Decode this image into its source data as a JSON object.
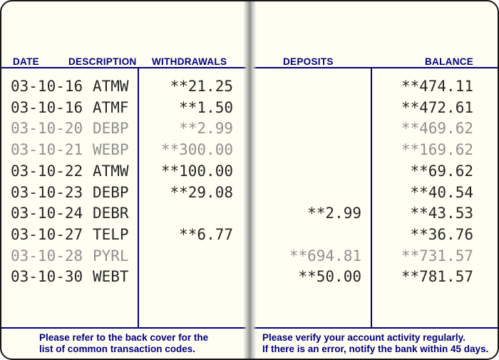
{
  "columns": {
    "date": "DATE",
    "description": "DESCRIPTION",
    "withdrawals": "WITHDRAWALS",
    "deposits": "DEPOSITS",
    "balance": "BALANCE"
  },
  "rows": [
    {
      "date": "03-10-16",
      "code": "ATMW",
      "withdrawal": "**21.25",
      "deposit": "",
      "balance": "**474.11",
      "faded": false
    },
    {
      "date": "03-10-16",
      "code": "ATMF",
      "withdrawal": "**1.50",
      "deposit": "",
      "balance": "**472.61",
      "faded": false
    },
    {
      "date": "03-10-20",
      "code": "DEBP",
      "withdrawal": "**2.99",
      "deposit": "",
      "balance": "**469.62",
      "faded": true
    },
    {
      "date": "03-10-21",
      "code": "WEBP",
      "withdrawal": "**300.00",
      "deposit": "",
      "balance": "**169.62",
      "faded": true
    },
    {
      "date": "03-10-22",
      "code": "ATMW",
      "withdrawal": "**100.00",
      "deposit": "",
      "balance": "**69.62",
      "faded": false
    },
    {
      "date": "03-10-23",
      "code": "DEBP",
      "withdrawal": "**29.08",
      "deposit": "",
      "balance": "**40.54",
      "faded": false
    },
    {
      "date": "03-10-24",
      "code": "DEBR",
      "withdrawal": "",
      "deposit": "**2.99",
      "balance": "**43.53",
      "faded": false
    },
    {
      "date": "03-10-27",
      "code": "TELP",
      "withdrawal": "**6.77",
      "deposit": "",
      "balance": "**36.76",
      "faded": false
    },
    {
      "date": "03-10-28",
      "code": "PYRL",
      "withdrawal": "",
      "deposit": "**694.81",
      "balance": "**731.57",
      "faded": true
    },
    {
      "date": "03-10-30",
      "code": "WEBT",
      "withdrawal": "",
      "deposit": "**50.00",
      "balance": "**781.57",
      "faded": false
    }
  ],
  "footer": {
    "left_line1": "Please refer to the back cover for the",
    "left_line2": "list of common transaction codes.",
    "right_line1": "Please verify your account activity regularly.",
    "right_line2": "If there is an error, notify the bank within 45 days."
  },
  "colors": {
    "accent_navy": "#000080",
    "print_dark": "#262626",
    "print_faded": "#909090",
    "page_background": "#FFFEF2"
  }
}
